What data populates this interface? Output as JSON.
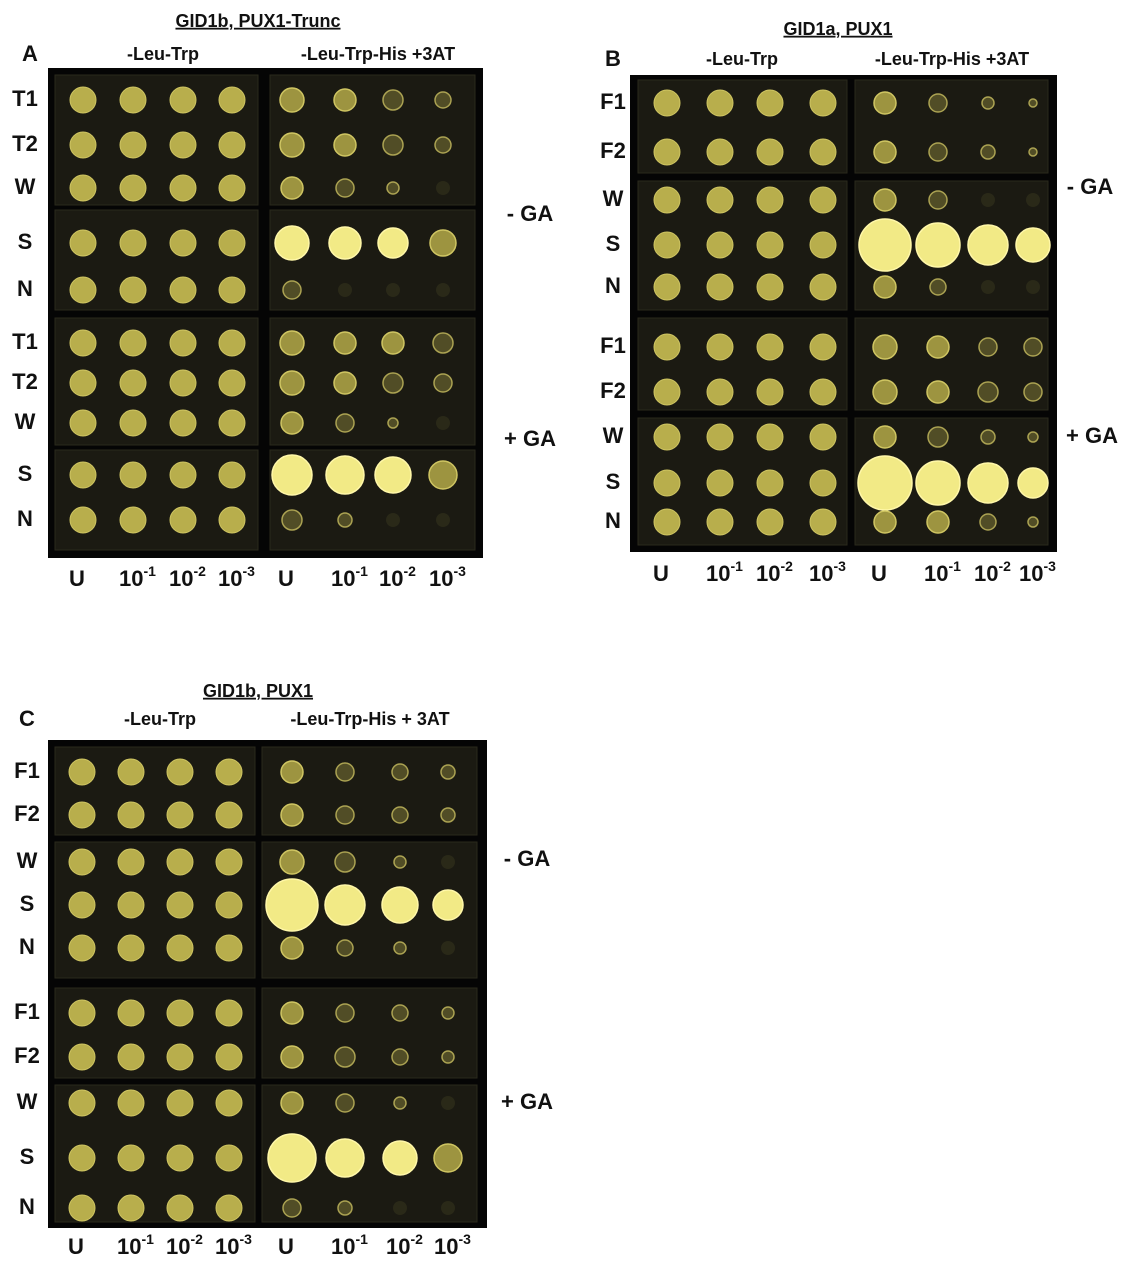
{
  "panels": [
    {
      "letter": "A",
      "title": "GID1b, PUX1-Trunc",
      "media": [
        "-Leu-Trp",
        "-Leu-Trp-His +3AT"
      ],
      "row_labels": [
        "T1",
        "T2",
        "W",
        "S",
        "N",
        "T1",
        "T2",
        "W",
        "S",
        "N"
      ],
      "conditions": [
        "- GA",
        "+ GA"
      ],
      "dilutions": [
        {
          "base": "U"
        },
        {
          "base": "10",
          "exp": "-1"
        },
        {
          "base": "10",
          "exp": "-2"
        },
        {
          "base": "10",
          "exp": "-3"
        },
        {
          "base": "U"
        },
        {
          "base": "10",
          "exp": "-1"
        },
        {
          "base": "10",
          "exp": "-2"
        },
        {
          "base": "10",
          "exp": "-3"
        }
      ]
    },
    {
      "letter": "B",
      "title": "GID1a, PUX1",
      "media": [
        "-Leu-Trp",
        "-Leu-Trp-His +3AT"
      ],
      "row_labels": [
        "F1",
        "F2",
        "W",
        "S",
        "N",
        "F1",
        "F2",
        "W",
        "S",
        "N"
      ],
      "conditions": [
        "- GA",
        "+ GA"
      ],
      "dilutions": [
        {
          "base": "U"
        },
        {
          "base": "10",
          "exp": "-1"
        },
        {
          "base": "10",
          "exp": "-2"
        },
        {
          "base": "10",
          "exp": "-3"
        },
        {
          "base": "U"
        },
        {
          "base": "10",
          "exp": "-1"
        },
        {
          "base": "10",
          "exp": "-2"
        },
        {
          "base": "10",
          "exp": "-3"
        }
      ]
    },
    {
      "letter": "C",
      "title": "GID1b, PUX1",
      "media": [
        "-Leu-Trp",
        "-Leu-Trp-His + 3AT"
      ],
      "row_labels": [
        "F1",
        "F2",
        "W",
        "S",
        "N",
        "F1",
        "F2",
        "W",
        "S",
        "N"
      ],
      "conditions": [
        "- GA",
        "+ GA"
      ],
      "dilutions": [
        {
          "base": "U"
        },
        {
          "base": "10",
          "exp": "-1"
        },
        {
          "base": "10",
          "exp": "-2"
        },
        {
          "base": "10",
          "exp": "-3"
        },
        {
          "base": "U"
        },
        {
          "base": "10",
          "exp": "-1"
        },
        {
          "base": "10",
          "exp": "-2"
        },
        {
          "base": "10",
          "exp": "-3"
        }
      ]
    }
  ]
}
